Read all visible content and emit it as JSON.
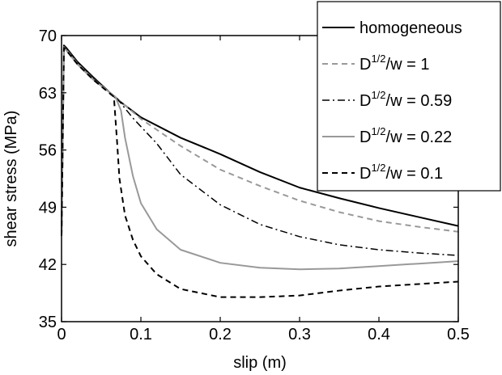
{
  "chart_data": {
    "type": "line",
    "xlabel": "slip (m)",
    "ylabel": "shear stress (MPa)",
    "xlim": [
      0,
      0.5
    ],
    "ylim": [
      35,
      70
    ],
    "xticks": [
      0,
      0.1,
      0.2,
      0.3,
      0.4,
      0.5
    ],
    "xtick_labels": [
      "0",
      "0.1",
      "0.2",
      "0.3",
      "0.4",
      "0.5"
    ],
    "yticks": [
      35,
      42,
      49,
      56,
      63,
      70
    ],
    "ytick_labels": [
      "35",
      "42",
      "49",
      "56",
      "63",
      "70"
    ],
    "grid": false,
    "legend_position": "top-right",
    "series": [
      {
        "name": "homogeneous",
        "legend": {
          "pre": "homogeneous",
          "sup": "",
          "post": ""
        },
        "color": "#000000",
        "dash": "solid",
        "stroke_width": 2,
        "x": [
          0,
          0.003,
          0.006,
          0.02,
          0.04,
          0.07,
          0.1,
          0.15,
          0.2,
          0.25,
          0.3,
          0.35,
          0.4,
          0.45,
          0.5
        ],
        "y": [
          45.5,
          68.8,
          68.5,
          66.8,
          64.9,
          62.2,
          60.0,
          57.5,
          55.5,
          53.3,
          51.4,
          50.1,
          48.9,
          47.8,
          46.7
        ]
      },
      {
        "name": "D1/2/w = 1",
        "legend": {
          "pre": "D",
          "sup": "1/2",
          "post": "/w = 1"
        },
        "color": "#999999",
        "dash": "dashed",
        "stroke_width": 2,
        "x": [
          0,
          0.003,
          0.006,
          0.02,
          0.04,
          0.07,
          0.1,
          0.15,
          0.2,
          0.25,
          0.3,
          0.35,
          0.4,
          0.45,
          0.5
        ],
        "y": [
          45.5,
          68.6,
          68.3,
          66.6,
          64.7,
          62.3,
          59.8,
          56.5,
          53.6,
          51.6,
          49.8,
          48.4,
          47.3,
          46.6,
          46.0
        ]
      },
      {
        "name": "D1/2/w = 0.59",
        "legend": {
          "pre": "D",
          "sup": "1/2",
          "post": "/w = 0.59"
        },
        "color": "#000000",
        "dash": "dashdot",
        "stroke_width": 1.5,
        "x": [
          0,
          0.003,
          0.006,
          0.02,
          0.04,
          0.07,
          0.09,
          0.12,
          0.15,
          0.2,
          0.25,
          0.3,
          0.35,
          0.4,
          0.45,
          0.5
        ],
        "y": [
          45.5,
          68.5,
          68.2,
          66.5,
          64.7,
          62.3,
          59.9,
          56.8,
          53.0,
          49.3,
          46.9,
          45.4,
          44.4,
          43.8,
          43.4,
          43.1
        ]
      },
      {
        "name": "D1/2/w = 0.22",
        "legend": {
          "pre": "D",
          "sup": "1/2",
          "post": "/w = 0.22"
        },
        "color": "#999999",
        "dash": "solid",
        "stroke_width": 2,
        "x": [
          0,
          0.003,
          0.006,
          0.02,
          0.04,
          0.068,
          0.075,
          0.08,
          0.09,
          0.1,
          0.12,
          0.15,
          0.2,
          0.25,
          0.3,
          0.35,
          0.4,
          0.45,
          0.5
        ],
        "y": [
          45.5,
          68.5,
          68.2,
          66.5,
          64.6,
          62.5,
          60.8,
          57.5,
          52.8,
          49.5,
          46.3,
          43.8,
          42.2,
          41.6,
          41.4,
          41.5,
          41.8,
          42.1,
          42.4
        ]
      },
      {
        "name": "D1/2/w = 0.1",
        "legend": {
          "pre": "D",
          "sup": "1/2",
          "post": "/w = 0.1"
        },
        "color": "#000000",
        "dash": "dashed",
        "stroke_width": 2,
        "x": [
          0,
          0.003,
          0.006,
          0.02,
          0.04,
          0.066,
          0.07,
          0.073,
          0.08,
          0.09,
          0.1,
          0.12,
          0.15,
          0.2,
          0.25,
          0.3,
          0.35,
          0.4,
          0.45,
          0.5
        ],
        "y": [
          45.5,
          68.5,
          68.2,
          66.5,
          64.6,
          62.5,
          57.0,
          52.5,
          48.0,
          45.0,
          43.0,
          40.8,
          39.0,
          38.0,
          38.0,
          38.2,
          38.8,
          39.3,
          39.6,
          39.9
        ]
      }
    ]
  }
}
